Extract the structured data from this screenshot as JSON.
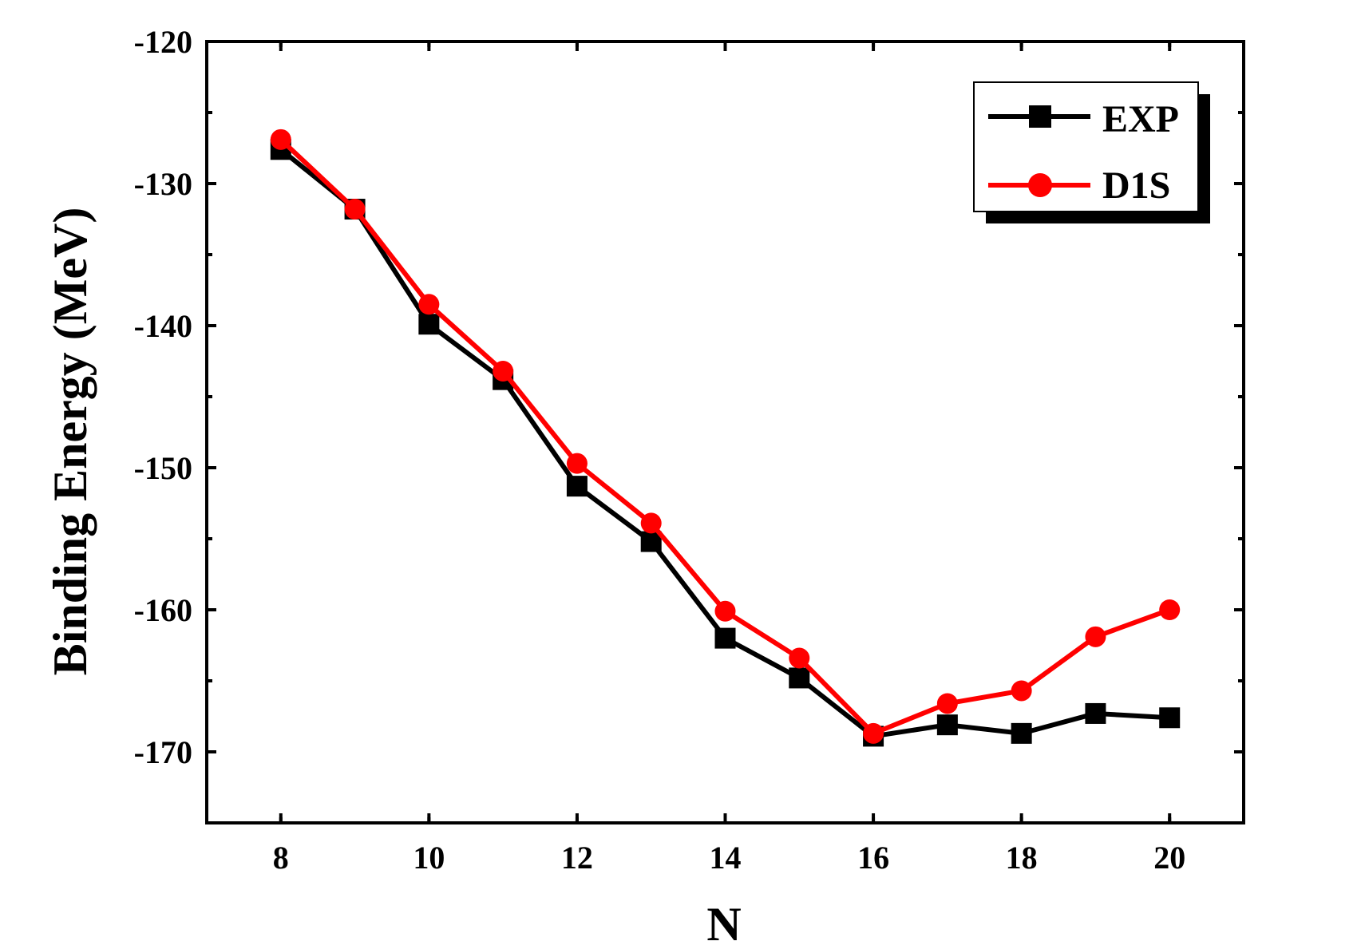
{
  "chart_data": {
    "type": "line",
    "title": "",
    "xlabel": "N",
    "ylabel": "Binding Energy (MeV)",
    "xlim": [
      7,
      21
    ],
    "ylim": [
      -175,
      -120
    ],
    "xticks": [
      8,
      10,
      12,
      14,
      16,
      18,
      20
    ],
    "xtick_labels": [
      "8",
      "10",
      "12",
      "14",
      "16",
      "18",
      "20"
    ],
    "yticks": [
      -120,
      -130,
      -140,
      -150,
      -160,
      -170
    ],
    "ytick_labels": [
      "-120",
      "-130",
      "-140",
      "-150",
      "-160",
      "-170"
    ],
    "grid": false,
    "legend_position": "top-right",
    "x": [
      8,
      9,
      10,
      11,
      12,
      13,
      14,
      15,
      16,
      17,
      18,
      19,
      20
    ],
    "series": [
      {
        "name": "EXP",
        "marker": "square",
        "color": "#000000",
        "values": [
          -127.6,
          -131.8,
          -139.9,
          -143.8,
          -151.3,
          -155.2,
          -162.0,
          -164.8,
          -168.9,
          -168.1,
          -168.7,
          -167.3,
          -167.6
        ]
      },
      {
        "name": "D1S",
        "marker": "circle",
        "color": "#ff0000",
        "values": [
          -126.9,
          -131.8,
          -138.5,
          -143.2,
          -149.7,
          -153.9,
          -160.1,
          -163.4,
          -168.7,
          -166.6,
          -165.7,
          -161.9,
          -160.0
        ]
      }
    ]
  }
}
